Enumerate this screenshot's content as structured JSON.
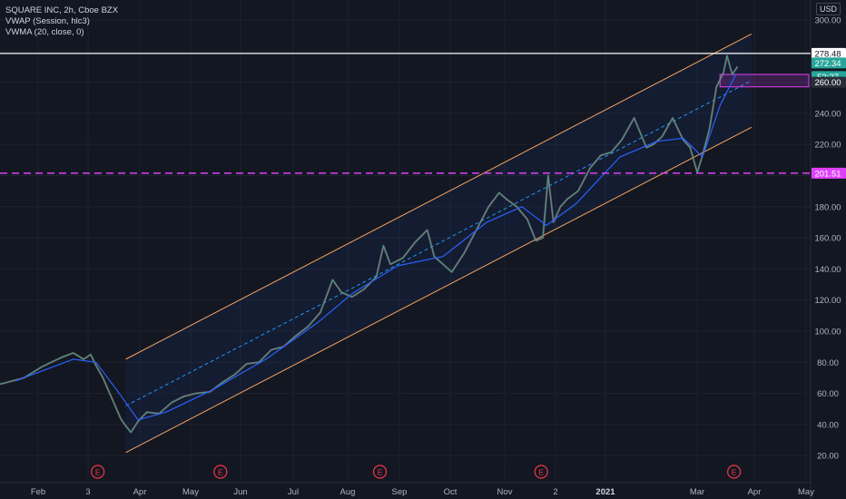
{
  "legend": {
    "symbol_line": "SQUARE INC, 2h, Cboe BZX",
    "vwap_line": "VWAP (Session, hlc3)",
    "vwma_line": "VWMA (20, close, 0)"
  },
  "currency_button": "USD",
  "chart_data": {
    "type": "line",
    "y_axis": {
      "ticks": [
        20,
        40,
        60,
        80,
        100,
        120,
        140,
        160,
        180,
        200,
        220,
        240,
        260,
        280,
        300
      ],
      "tick_labels": [
        "20.00",
        "40.00",
        "60.00",
        "80.00",
        "100.00",
        "120.00",
        "140.00",
        "160.00",
        "180.00",
        "200.00",
        "220.00",
        "240.00",
        "260.00",
        "280.00",
        "300.00"
      ],
      "range": [
        10,
        311
      ]
    },
    "x_axis": {
      "labels": [
        "Feb",
        "3",
        "Apr",
        "May",
        "Jun",
        "Jul",
        "Aug",
        "Sep",
        "Oct",
        "Nov",
        "2",
        "2021",
        "Mar",
        "Apr",
        "May"
      ],
      "bold_labels": [
        "2021"
      ]
    },
    "series": [
      {
        "type": "price",
        "points": [
          [
            "2019-12-25",
            64
          ],
          [
            "2020-01-05",
            67
          ],
          [
            "2020-01-15",
            70
          ],
          [
            "2020-01-25",
            77
          ],
          [
            "2020-02-05",
            83
          ],
          [
            "2020-02-12",
            86
          ],
          [
            "2020-02-18",
            82
          ],
          [
            "2020-02-22",
            85
          ],
          [
            "2020-02-25",
            78
          ],
          [
            "2020-02-29",
            70
          ],
          [
            "2020-03-05",
            57
          ],
          [
            "2020-03-10",
            44
          ],
          [
            "2020-03-13",
            39
          ],
          [
            "2020-03-16",
            35
          ],
          [
            "2020-03-20",
            42
          ],
          [
            "2020-03-25",
            48
          ],
          [
            "2020-04-01",
            47
          ],
          [
            "2020-04-08",
            54
          ],
          [
            "2020-04-15",
            58
          ],
          [
            "2020-04-22",
            60
          ],
          [
            "2020-04-30",
            61
          ],
          [
            "2020-05-07",
            67
          ],
          [
            "2020-05-14",
            72
          ],
          [
            "2020-05-21",
            79
          ],
          [
            "2020-05-28",
            80
          ],
          [
            "2020-06-04",
            88
          ],
          [
            "2020-06-11",
            90
          ],
          [
            "2020-06-18",
            97
          ],
          [
            "2020-06-25",
            103
          ],
          [
            "2020-07-02",
            112
          ],
          [
            "2020-07-09",
            133
          ],
          [
            "2020-07-14",
            125
          ],
          [
            "2020-07-20",
            122
          ],
          [
            "2020-07-27",
            127
          ],
          [
            "2020-08-03",
            135
          ],
          [
            "2020-08-07",
            155
          ],
          [
            "2020-08-11",
            143
          ],
          [
            "2020-08-18",
            147
          ],
          [
            "2020-08-25",
            157
          ],
          [
            "2020-09-01",
            165
          ],
          [
            "2020-09-05",
            148
          ],
          [
            "2020-09-10",
            143
          ],
          [
            "2020-09-15",
            138
          ],
          [
            "2020-09-22",
            150
          ],
          [
            "2020-09-29",
            165
          ],
          [
            "2020-10-06",
            180
          ],
          [
            "2020-10-12",
            189
          ],
          [
            "2020-10-16",
            185
          ],
          [
            "2020-10-22",
            180
          ],
          [
            "2020-10-28",
            172
          ],
          [
            "2020-11-02",
            158
          ],
          [
            "2020-11-06",
            160
          ],
          [
            "2020-11-09",
            200
          ],
          [
            "2020-11-12",
            170
          ],
          [
            "2020-11-16",
            180
          ],
          [
            "2020-11-20",
            185
          ],
          [
            "2020-11-26",
            190
          ],
          [
            "2020-12-03",
            205
          ],
          [
            "2020-12-09",
            213
          ],
          [
            "2020-12-15",
            215
          ],
          [
            "2020-12-21",
            223
          ],
          [
            "2020-12-28",
            237
          ],
          [
            "2021-01-04",
            218
          ],
          [
            "2021-01-08",
            220
          ],
          [
            "2021-01-13",
            225
          ],
          [
            "2021-01-19",
            237
          ],
          [
            "2021-01-25",
            223
          ],
          [
            "2021-01-29",
            218
          ],
          [
            "2021-02-02",
            202
          ],
          [
            "2021-02-05",
            213
          ],
          [
            "2021-02-09",
            230
          ],
          [
            "2021-02-13",
            257
          ],
          [
            "2021-02-17",
            266
          ],
          [
            "2021-02-19",
            277
          ],
          [
            "2021-02-22",
            265
          ],
          [
            "2021-02-25",
            270
          ]
        ]
      },
      {
        "type": "vwma",
        "name": "VWMA (20, close, 0)",
        "color": "#2962ff",
        "points": [
          [
            "2020-01-10",
            68
          ],
          [
            "2020-02-12",
            82
          ],
          [
            "2020-02-25",
            80
          ],
          [
            "2020-03-08",
            62
          ],
          [
            "2020-03-20",
            43
          ],
          [
            "2020-04-05",
            48
          ],
          [
            "2020-05-01",
            62
          ],
          [
            "2020-06-01",
            82
          ],
          [
            "2020-07-01",
            106
          ],
          [
            "2020-07-20",
            124
          ],
          [
            "2020-08-15",
            142
          ],
          [
            "2020-09-10",
            148
          ],
          [
            "2020-10-05",
            170
          ],
          [
            "2020-10-25",
            180
          ],
          [
            "2020-11-08",
            168
          ],
          [
            "2020-11-25",
            182
          ],
          [
            "2020-12-20",
            212
          ],
          [
            "2021-01-10",
            222
          ],
          [
            "2021-01-25",
            224
          ],
          [
            "2021-02-05",
            212
          ],
          [
            "2021-02-15",
            245
          ],
          [
            "2021-02-24",
            265
          ]
        ]
      }
    ],
    "regression_channel": {
      "start": [
        "2020-03-13",
        52
      ],
      "end": [
        "2021-03-05",
        261
      ],
      "upper_offset": 30,
      "lower_offset": 30,
      "stroke_color": "#f7a35c",
      "center_color": "#2196f3"
    },
    "horizontal_lines": [
      {
        "price": 278.48,
        "label": "278.48",
        "color": "#ffffff",
        "style": "solid"
      },
      {
        "price": 201.51,
        "label": "201.51",
        "color": "#e040fb",
        "style": "dashed"
      }
    ],
    "price_labels": [
      {
        "price": 272.34,
        "label": "272.34",
        "color": "#26a69a"
      },
      {
        "price": 263.6,
        "label": "52:27",
        "color": "#26a69a"
      },
      {
        "price": 260,
        "label": "260.00",
        "color": "#2a2e39"
      }
    ],
    "zone": {
      "from": "2021-02-15",
      "to": "2021-03-05",
      "low": 257,
      "high": 265,
      "color": "#e040fb"
    },
    "earnings_markers": [
      {
        "date": "2020-02-26",
        "label": "E"
      },
      {
        "date": "2020-05-06",
        "label": "E"
      },
      {
        "date": "2020-08-05",
        "label": "E"
      },
      {
        "date": "2020-11-05",
        "label": "E"
      },
      {
        "date": "2021-02-23",
        "label": "E"
      }
    ]
  }
}
